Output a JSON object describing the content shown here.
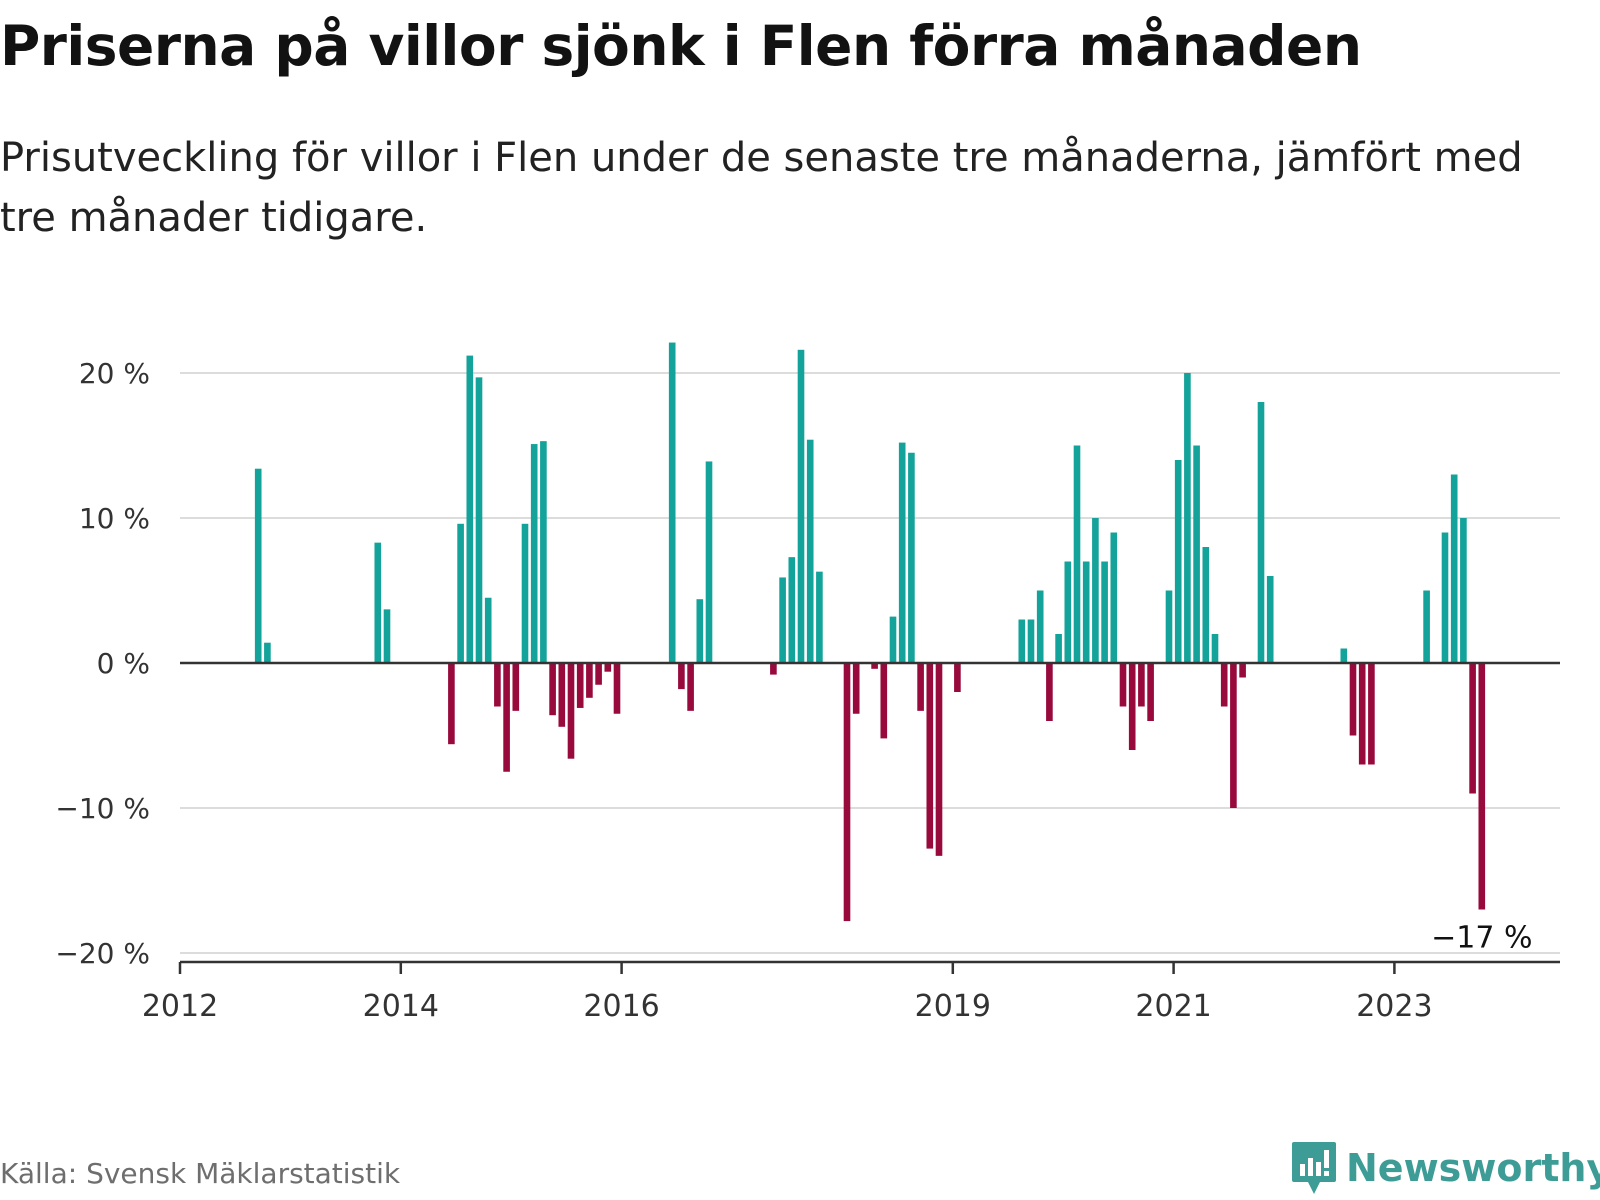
{
  "title": "Priserna på villor sjönk i Flen förra månaden",
  "subtitle": "Prisutveckling för villor i Flen under de senaste tre månaderna, jämfört med tre månader tidigare.",
  "source": "Källa: Svensk Mäklarstatistik",
  "brand": "Newsworthy",
  "colors": {
    "positive": "#14a39a",
    "negative": "#980a3c",
    "grid": "#dcdcdc",
    "axis": "#333333",
    "brand": "#3d9c96"
  },
  "chart_data": {
    "type": "bar",
    "ylim": [
      -20,
      20
    ],
    "y_ticks": [
      20,
      10,
      0,
      -10,
      -20
    ],
    "y_tick_labels": [
      "20 %",
      "10 %",
      "0 %",
      "−10 %",
      "−20 %"
    ],
    "x_ticks": [
      2012,
      2014,
      2016,
      2019,
      2021,
      2023
    ],
    "x_tick_labels": [
      "2012",
      "2014",
      "2016",
      "2019",
      "2021",
      "2023"
    ],
    "grid": true,
    "highlight_label": "−17 %",
    "bars": [
      {
        "x": "2012-09",
        "value": 13.4
      },
      {
        "x": "2012-10",
        "value": 1.4
      },
      {
        "x": "2013-10",
        "value": 8.3
      },
      {
        "x": "2013-11",
        "value": 3.7
      },
      {
        "x": "2014-06",
        "value": -5.6
      },
      {
        "x": "2014-07",
        "value": 9.6
      },
      {
        "x": "2014-08",
        "value": 21.2
      },
      {
        "x": "2014-09",
        "value": 19.7
      },
      {
        "x": "2014-10",
        "value": 4.5
      },
      {
        "x": "2014-11",
        "value": -3.0
      },
      {
        "x": "2014-12",
        "value": -7.5
      },
      {
        "x": "2015-01",
        "value": -3.3
      },
      {
        "x": "2015-02",
        "value": 9.6
      },
      {
        "x": "2015-03",
        "value": 15.1
      },
      {
        "x": "2015-04",
        "value": 15.3
      },
      {
        "x": "2015-05",
        "value": -3.6
      },
      {
        "x": "2015-06",
        "value": -4.4
      },
      {
        "x": "2015-07",
        "value": -6.6
      },
      {
        "x": "2015-08",
        "value": -3.1
      },
      {
        "x": "2015-09",
        "value": -2.4
      },
      {
        "x": "2015-10",
        "value": -1.5
      },
      {
        "x": "2015-11",
        "value": -0.6
      },
      {
        "x": "2015-12",
        "value": -3.5
      },
      {
        "x": "2016-06",
        "value": 22.1
      },
      {
        "x": "2016-07",
        "value": -1.8
      },
      {
        "x": "2016-08",
        "value": -3.3
      },
      {
        "x": "2016-09",
        "value": 4.4
      },
      {
        "x": "2016-10",
        "value": 13.9
      },
      {
        "x": "2017-05",
        "value": -0.8
      },
      {
        "x": "2017-06",
        "value": 5.9
      },
      {
        "x": "2017-07",
        "value": 7.3
      },
      {
        "x": "2017-08",
        "value": 21.6
      },
      {
        "x": "2017-09",
        "value": 15.4
      },
      {
        "x": "2017-10",
        "value": 6.3
      },
      {
        "x": "2018-01",
        "value": -17.8
      },
      {
        "x": "2018-02",
        "value": -3.5
      },
      {
        "x": "2018-04",
        "value": -0.4
      },
      {
        "x": "2018-05",
        "value": -5.2
      },
      {
        "x": "2018-06",
        "value": 3.2
      },
      {
        "x": "2018-07",
        "value": 15.2
      },
      {
        "x": "2018-08",
        "value": 14.5
      },
      {
        "x": "2018-09",
        "value": -3.3
      },
      {
        "x": "2018-10",
        "value": -12.8
      },
      {
        "x": "2018-11",
        "value": -13.3
      },
      {
        "x": "2019-01",
        "value": -2.0
      },
      {
        "x": "2019-08",
        "value": 3.0
      },
      {
        "x": "2019-09",
        "value": 3.0
      },
      {
        "x": "2019-10",
        "value": 5.0
      },
      {
        "x": "2019-11",
        "value": -4.0
      },
      {
        "x": "2019-12",
        "value": 2.0
      },
      {
        "x": "2020-01",
        "value": 7.0
      },
      {
        "x": "2020-02",
        "value": 15.0
      },
      {
        "x": "2020-03",
        "value": 7.0
      },
      {
        "x": "2020-04",
        "value": 10.0
      },
      {
        "x": "2020-05",
        "value": 7.0
      },
      {
        "x": "2020-06",
        "value": 9.0
      },
      {
        "x": "2020-07",
        "value": -3.0
      },
      {
        "x": "2020-08",
        "value": -6.0
      },
      {
        "x": "2020-09",
        "value": -3.0
      },
      {
        "x": "2020-10",
        "value": -4.0
      },
      {
        "x": "2020-12",
        "value": 5.0
      },
      {
        "x": "2021-01",
        "value": 14.0
      },
      {
        "x": "2021-02",
        "value": 20.0
      },
      {
        "x": "2021-03",
        "value": 15.0
      },
      {
        "x": "2021-04",
        "value": 8.0
      },
      {
        "x": "2021-05",
        "value": 2.0
      },
      {
        "x": "2021-06",
        "value": -3.0
      },
      {
        "x": "2021-07",
        "value": -10.0
      },
      {
        "x": "2021-08",
        "value": -1.0
      },
      {
        "x": "2021-10",
        "value": 18.0
      },
      {
        "x": "2021-11",
        "value": 6.0
      },
      {
        "x": "2022-07",
        "value": 1.0
      },
      {
        "x": "2022-08",
        "value": -5.0
      },
      {
        "x": "2022-09",
        "value": -7.0
      },
      {
        "x": "2022-10",
        "value": -7.0
      },
      {
        "x": "2023-04",
        "value": 5.0
      },
      {
        "x": "2023-06",
        "value": 9.0
      },
      {
        "x": "2023-07",
        "value": 13.0
      },
      {
        "x": "2023-08",
        "value": 10.0
      },
      {
        "x": "2023-09",
        "value": -9.0
      },
      {
        "x": "2023-10",
        "value": -17.0
      }
    ]
  }
}
